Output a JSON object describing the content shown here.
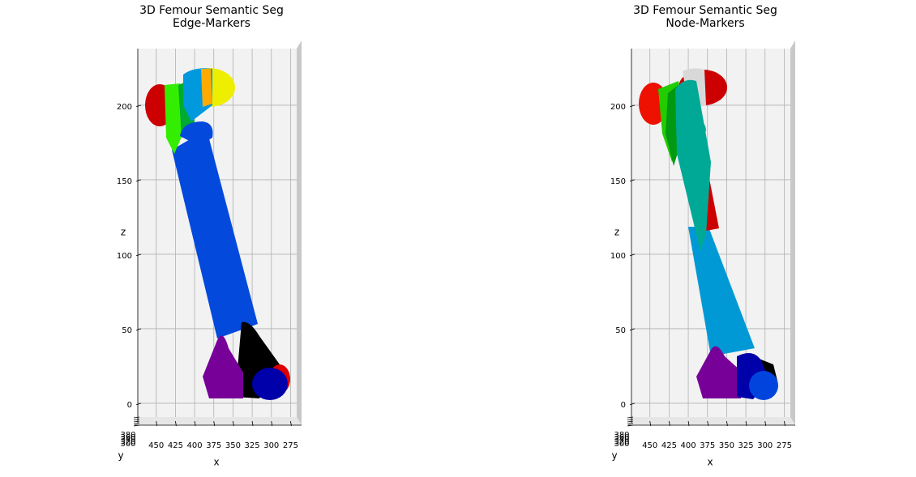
{
  "chart_data": [
    {
      "type": "scatter3d",
      "title": "3D Femour Semantic Seg",
      "subtitle": "Edge-Markers",
      "xlabel": "x",
      "ylabel": "y",
      "zlabel": "z",
      "xlim": [
        474,
        267
      ],
      "xticks": [
        450,
        425,
        400,
        375,
        350,
        325,
        300,
        275
      ],
      "ylim": [
        300,
        380
      ],
      "yticks": [
        300,
        320,
        340,
        360,
        380
      ],
      "zlim": [
        -12,
        238
      ],
      "zticks": [
        0,
        50,
        100,
        150,
        200
      ],
      "grid": true
    },
    {
      "type": "scatter3d",
      "title": "3D Femour Semantic Seg",
      "subtitle": "Node-Markers",
      "xlabel": "x",
      "ylabel": "y",
      "zlabel": "z",
      "xlim": [
        474,
        267
      ],
      "xticks": [
        450,
        425,
        400,
        375,
        350,
        325,
        300,
        275
      ],
      "ylim": [
        300,
        380
      ],
      "yticks": [
        300,
        320,
        340,
        360,
        380
      ],
      "zlim": [
        -12,
        238
      ],
      "zticks": [
        0,
        50,
        100,
        150,
        200
      ],
      "grid": true
    }
  ]
}
